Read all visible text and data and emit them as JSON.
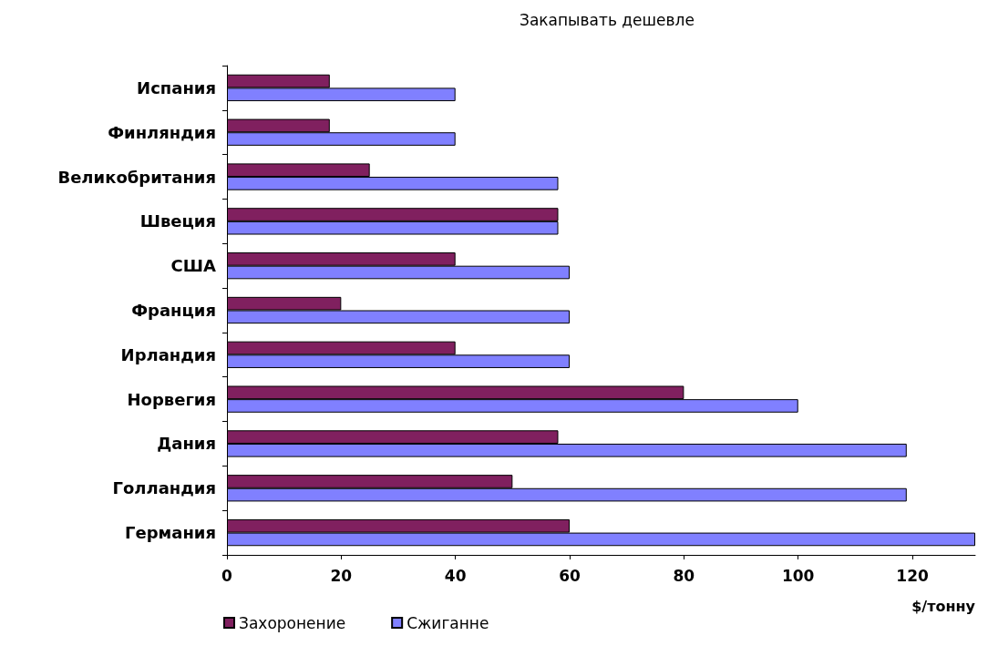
{
  "chart_data": {
    "type": "bar",
    "orientation": "horizontal",
    "title": "Закапывать дешевле",
    "xlabel": "$/тонну",
    "categories": [
      "Испания",
      "Финляндия",
      "Великобритания",
      "Швеция",
      "США",
      "Франция",
      "Ирландия",
      "Норвегия",
      "Дания",
      "Голландия",
      "Германия"
    ],
    "series": [
      {
        "name": "Захоронение",
        "color": "#80205f",
        "values": [
          18,
          18,
          25,
          58,
          40,
          20,
          40,
          80,
          58,
          50,
          60
        ]
      },
      {
        "name": "Сжиганне",
        "color": "#8080ff",
        "values": [
          40,
          40,
          58,
          58,
          60,
          60,
          60,
          100,
          119,
          119,
          131
        ]
      }
    ],
    "xlim": [
      0,
      131
    ],
    "xticks": [
      0,
      20,
      40,
      60,
      80,
      100,
      120
    ],
    "grid": false,
    "legend": "bottom left"
  }
}
